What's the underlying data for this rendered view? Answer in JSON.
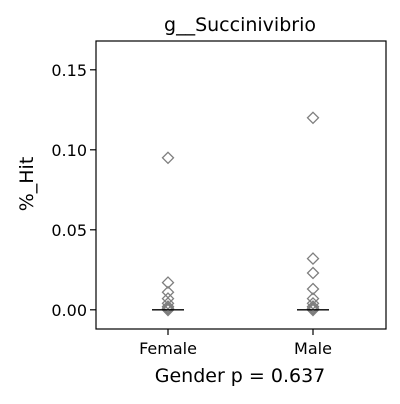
{
  "chart_data": {
    "type": "scatter",
    "title": "g__Succinivibrio",
    "xlabel": "Gender p = 0.637",
    "ylabel": "%_Hit",
    "categories": [
      "Female",
      "Male"
    ],
    "ylim": [
      -0.012,
      0.168
    ],
    "yticks": [
      {
        "value": 0.0,
        "label": "0.00"
      },
      {
        "value": 0.05,
        "label": "0.05"
      },
      {
        "value": 0.1,
        "label": "0.10"
      },
      {
        "value": 0.15,
        "label": "0.15"
      }
    ],
    "grid": false,
    "marker": "diamond-open",
    "marker_color": "#7f7f7f",
    "median_color": "#000000",
    "groups": [
      {
        "category": "Female",
        "values": [
          0.095,
          0.017,
          0.011,
          0.007,
          0.004,
          0.002,
          0.001,
          0.0,
          0.0,
          0.0,
          0.0,
          0.0
        ],
        "median": 0.0
      },
      {
        "category": "Male",
        "values": [
          0.12,
          0.032,
          0.023,
          0.013,
          0.007,
          0.004,
          0.002,
          0.001,
          0.0,
          0.0,
          0.0,
          0.0,
          0.0
        ],
        "median": 0.0
      }
    ]
  }
}
